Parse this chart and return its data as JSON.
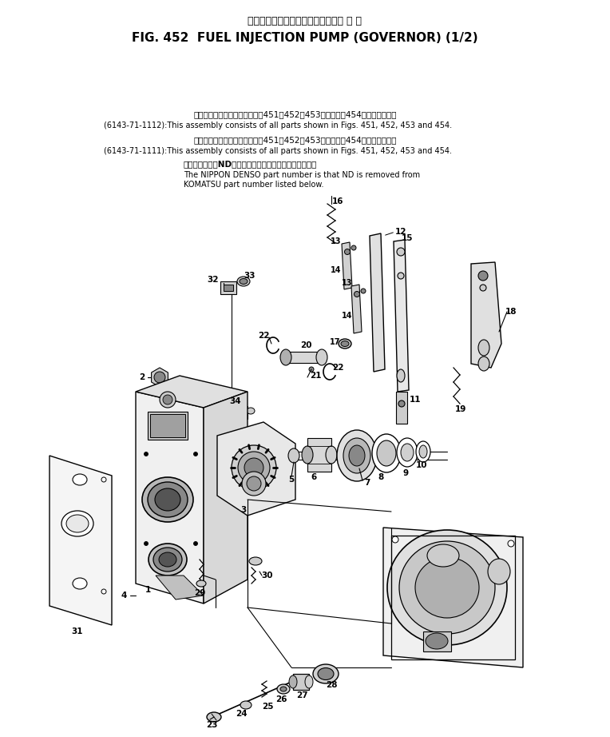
{
  "title_japanese": "フェルインジェクションポンプ　ガ バ ナ",
  "title_english": "FIG. 452  FUEL INJECTION PUMP (GOVERNOR) (1/2)",
  "bg_color": "#ffffff",
  "note1_ja": "このアセンブリの構成部品は第451、452、453図および第454図を含みます。",
  "note1_en": "(6143-71-1112):This assembly consists of all parts shown in Figs. 451, 452, 453 and 454.",
  "note2_ja": "このアセンブリの構成部品は第451、452、453図および第454図を含みます。",
  "note2_en": "(6143-71-1111):This assembly consists of all parts shown in Figs. 451, 452, 453 and 454.",
  "note3_ja": "本書のメーカーNDを用いたものが日本電装の商品です。",
  "note3_en1": "The NIPPON DENSO part number is that ND is removed from",
  "note3_en2": "KOMATSU part number listed below."
}
